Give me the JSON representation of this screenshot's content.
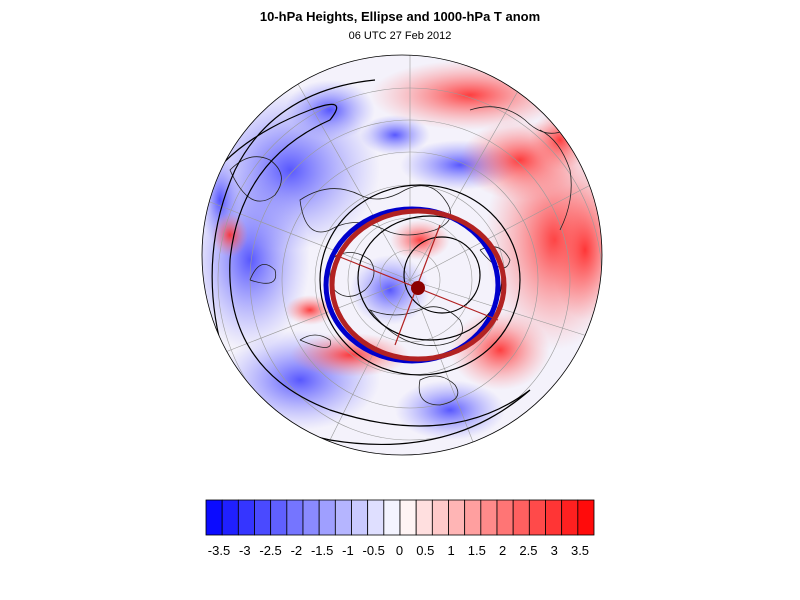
{
  "figure": {
    "title": "10-hPa Heights, Ellipse and 1000-hPa T anom",
    "subtitle": "06 UTC 27 Feb 2012"
  },
  "colorbar": {
    "labels": [
      "-3.5",
      "-3",
      "-2.5",
      "-2",
      "-1.5",
      "-1",
      "-0.5",
      "0",
      "0.5",
      "1",
      "1.5",
      "2",
      "2.5",
      "3",
      "3.5"
    ],
    "levels": [
      -3.5,
      -3,
      -2.5,
      -2,
      -1.5,
      -1,
      -0.5,
      0,
      0.5,
      1,
      1.5,
      2,
      2.5,
      3,
      3.5
    ],
    "min_color": "#0000ff",
    "mid_color": "#ffffff",
    "max_color": "#ff0000"
  },
  "map": {
    "projection": "north-polar-orthographic",
    "ellipse_colors": [
      "#0000cc",
      "#b22222"
    ],
    "height_contour_color": "#000000",
    "warm_anomaly_color": "#ff6666",
    "cold_anomaly_color": "#6666ff"
  }
}
